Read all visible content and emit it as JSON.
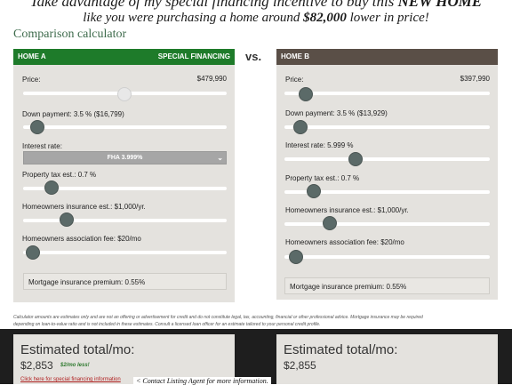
{
  "hero": {
    "line1_pre": "Take advantage of my special financing incentive to buy this ",
    "line1_bold": "NEW HOME",
    "line2_pre": "like you were purchasing a home around ",
    "line2_bold": "$82,000",
    "line2_post": " lower in price!"
  },
  "calculator_title": "Comparison calculator",
  "vs_label": "vs.",
  "home_a": {
    "title": "HOME A",
    "badge": "SPECIAL FINANCING",
    "price_label": "Price:",
    "price_value": "$479,990",
    "down_label": "Down payment:",
    "down_value": "3.5 % ($16,799)",
    "rate_label": "Interest rate:",
    "rate_select": "FHA 3.999%",
    "tax_label": "Property tax est.:",
    "tax_value": "0.7 %",
    "ins_label": "Homeowners insurance est.:",
    "ins_value": "$1,000/yr.",
    "hoa_label": "Homeowners association fee:",
    "hoa_value": "$20/mo",
    "mi_label": "Mortgage insurance premium:",
    "mi_value": "0.55%",
    "header_color": "#1e7b2a"
  },
  "home_b": {
    "title": "HOME B",
    "price_label": "Price:",
    "price_value": "$397,990",
    "down_label": "Down payment:",
    "down_value": "3.5 % ($13,929)",
    "rate_label": "Interest rate:",
    "rate_value": "5.999 %",
    "tax_label": "Property tax est.:",
    "tax_value": "0.7 %",
    "ins_label": "Homeowners insurance est.:",
    "ins_value": "$1,000/yr.",
    "hoa_label": "Homeowners association fee:",
    "hoa_value": "$20/mo",
    "mi_label": "Mortgage insurance premium:",
    "mi_value": "0.55%",
    "header_color": "#5a4f47"
  },
  "disclaimer_line1": "Calculator amounts are estimates only and are not an offering or advertisement for credit and do not constitute legal, tax, accounting, financial or other professional advice. Mortgage insurance may be required",
  "disclaimer_line2": "depending on loan-to-value ratio and is not included in these estimates. Consult a licensed loan officer for an estimate tailored to your personal credit profile.",
  "estimate_a": {
    "title": "Estimated total/mo:",
    "amount": "$2,853",
    "note": "$2/mo less!",
    "link": "Click here for special financing information"
  },
  "estimate_b": {
    "title": "Estimated total/mo:",
    "amount": "$2,855"
  },
  "contact_note": "< Contact Listing Agent for more information."
}
